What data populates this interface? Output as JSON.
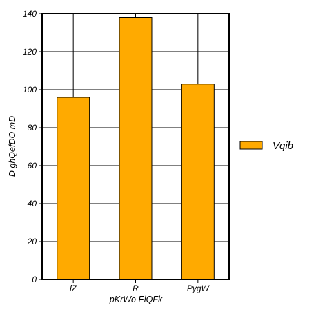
{
  "chart_data": {
    "type": "bar",
    "categories": [
      "lZ",
      "R",
      "PygW"
    ],
    "series": [
      {
        "name": "Vqib",
        "values": [
          96,
          138,
          103
        ],
        "color": "#ffaa00"
      }
    ],
    "title": "",
    "xlabel": "pKrWo ElQFk",
    "ylabel": "D ghQefDO mD",
    "ylim": [
      0,
      140
    ],
    "yticks": [
      0,
      20,
      40,
      60,
      80,
      100,
      120,
      140
    ],
    "grid": true,
    "legend_position": "right"
  }
}
